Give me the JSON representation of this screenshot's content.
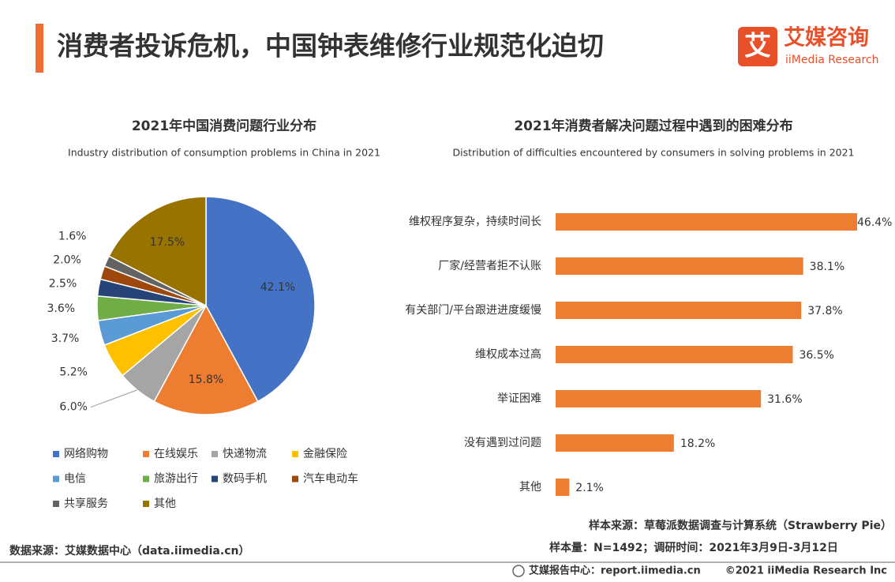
{
  "header": {
    "title": "消费者投诉危机，中国钟表维修行业规范化迫切",
    "logo_mark": "艾",
    "logo_cn": "艾媒咨询",
    "logo_en": "iiMedia Research"
  },
  "chart_data": [
    {
      "type": "pie",
      "title": "2021年中国消费问题行业分布",
      "subtitle": "Industry distribution of consumption problems in China in 2021",
      "categories": [
        "网络购物",
        "在线娱乐",
        "快递物流",
        "金融保险",
        "电信",
        "旅游出行",
        "数码手机",
        "汽车电动车",
        "共享服务",
        "其他"
      ],
      "values": [
        42.1,
        15.8,
        6.0,
        5.2,
        3.7,
        3.6,
        2.5,
        2.0,
        1.6,
        17.5
      ],
      "value_labels": [
        "42.1%",
        "15.8%",
        "6.0%",
        "5.2%",
        "3.7%",
        "3.6%",
        "2.5%",
        "2.0%",
        "1.6%",
        "17.5%"
      ],
      "colors": [
        "#4472c4",
        "#ed7d31",
        "#a5a5a5",
        "#ffc000",
        "#5b9bd5",
        "#70ad47",
        "#264478",
        "#9e480e",
        "#636363",
        "#997300"
      ]
    },
    {
      "type": "hbar",
      "title": "2021年消费者解决问题过程中遇到的困难分布",
      "subtitle": "Distribution of difficulties encountered by consumers in solving problems in 2021",
      "categories": [
        "维权程序复杂，持续时间长",
        "厂家/经营者拒不认账",
        "有关部门/平台跟进进度缓慢",
        "维权成本过高",
        "举证困难",
        "没有遇到过问题",
        "其他"
      ],
      "values": [
        46.4,
        38.1,
        37.8,
        36.5,
        31.6,
        18.2,
        2.1
      ],
      "value_labels": [
        "46.4%",
        "38.1%",
        "37.8%",
        "36.5%",
        "31.6%",
        "18.2%",
        "2.1%"
      ],
      "color": "#ed7d31"
    }
  ],
  "notes": {
    "sample_source": "样本来源：草莓派数据调查与计算系统（Strawberry Pie）",
    "sample_size": "样本量：N=1492；调研时间：2021年3月9日-3月12日",
    "data_source": "数据来源：艾媒数据中心（data.iimedia.cn）"
  },
  "footer": {
    "report_center": "艾媒报告中心：report.iimedia.cn",
    "copyright": "©2021  iiMedia Research  Inc"
  }
}
